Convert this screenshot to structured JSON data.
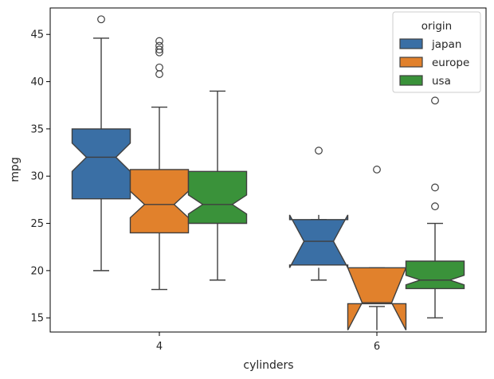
{
  "chart_data": {
    "type": "boxplot",
    "notched": true,
    "xlabel": "cylinders",
    "ylabel": "mpg",
    "categories": [
      "4",
      "6"
    ],
    "ylim": [
      13.5,
      47.8
    ],
    "yticks": [
      15,
      20,
      25,
      30,
      35,
      40,
      45
    ],
    "grid": false,
    "legend": {
      "title": "origin",
      "placement": "top-right"
    },
    "series": [
      {
        "name": "japan",
        "color": "#3a6fa5",
        "boxes": [
          {
            "category": "4",
            "whisker_low": 20.0,
            "q1": 27.6,
            "median": 32.0,
            "q3": 35.0,
            "whisker_high": 44.6,
            "notch_low": 30.5,
            "notch_high": 33.5,
            "outliers": [
              46.6
            ]
          },
          {
            "category": "6",
            "whisker_low": 19.0,
            "q1": 20.6,
            "median": 23.1,
            "q3": 25.4,
            "whisker_high": 25.4,
            "notch_low": 20.3,
            "notch_high": 25.9,
            "outliers": [
              32.7
            ]
          }
        ]
      },
      {
        "name": "europe",
        "color": "#e1812c",
        "boxes": [
          {
            "category": "4",
            "whisker_low": 18.0,
            "q1": 24.0,
            "median": 27.0,
            "q3": 30.7,
            "whisker_high": 37.3,
            "notch_low": 25.6,
            "notch_high": 28.4,
            "outliers": [
              40.8,
              41.5,
              43.1,
              43.4,
              43.8,
              44.3
            ]
          },
          {
            "category": "6",
            "whisker_low": 16.2,
            "q1": 16.5,
            "median": 16.6,
            "q3": 20.3,
            "whisker_high": 20.3,
            "notch_low": 13.7,
            "notch_high": 20.3,
            "outliers": [
              30.7
            ]
          }
        ]
      },
      {
        "name": "usa",
        "color": "#3a923a",
        "boxes": [
          {
            "category": "4",
            "whisker_low": 19.0,
            "q1": 25.0,
            "median": 27.0,
            "q3": 30.5,
            "whisker_high": 39.0,
            "notch_low": 26.0,
            "notch_high": 28.0,
            "outliers": []
          },
          {
            "category": "6",
            "whisker_low": 15.0,
            "q1": 18.1,
            "median": 19.0,
            "q3": 21.0,
            "whisker_high": 25.0,
            "notch_low": 18.5,
            "notch_high": 19.5,
            "outliers": [
              26.8,
              28.8,
              38.0
            ]
          }
        ]
      }
    ]
  }
}
